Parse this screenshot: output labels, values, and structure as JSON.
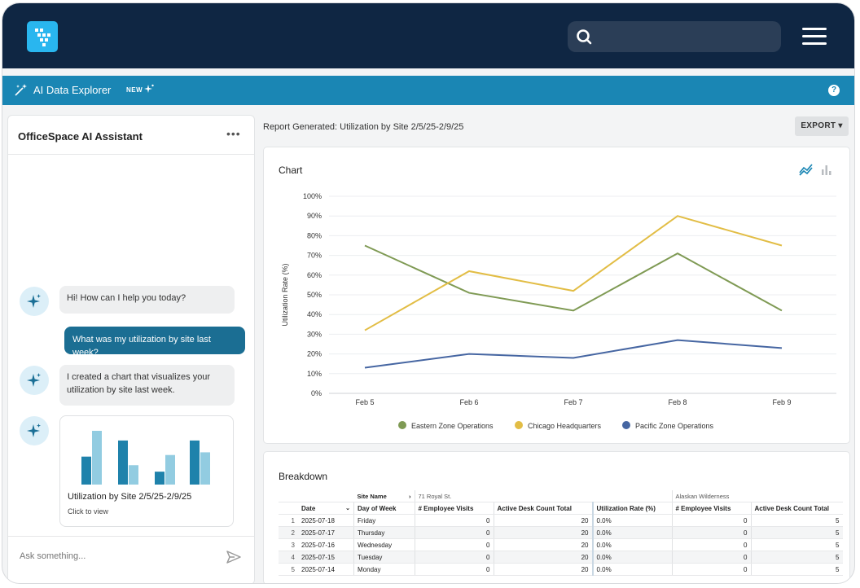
{
  "header": {
    "logo_icon": "brand-logo-icon",
    "search_icon": "search-icon",
    "menu_icon": "hamburger-menu-icon"
  },
  "subbar": {
    "title": "AI Data Explorer",
    "badge": "NEW",
    "help": "?"
  },
  "assistant": {
    "title": "OfficeSpace AI Assistant",
    "more": "•••",
    "messages": {
      "greeting": "Hi! How can I help you today?",
      "user_question": "What was my utilization by site last week?",
      "bot_reply": "I created a chart that visualizes your utilization by site last week."
    },
    "card": {
      "title": "Utilization by Site 2/5/25-2/9/25",
      "subtitle": "Click to view",
      "bars": [
        0.52,
        1.0,
        0.82,
        0.36,
        0.24,
        0.55,
        0.82,
        0.6
      ],
      "colors": [
        "#1f82ab",
        "#92cce1",
        "#1f82ab",
        "#92cce1",
        "#1f82ab",
        "#92cce1",
        "#1f82ab",
        "#92cce1"
      ]
    },
    "input_placeholder": "Ask something..."
  },
  "report": {
    "title": "Report Generated: Utilization by Site 2/5/25-2/9/25",
    "export_label": "EXPORT ▾"
  },
  "chart": {
    "title": "Chart"
  },
  "chart_data": {
    "type": "line",
    "x": [
      "Feb 5",
      "Feb 6",
      "Feb 7",
      "Feb 8",
      "Feb 9"
    ],
    "ylabel": "Utilization Rate (%)",
    "ylim": [
      0,
      100
    ],
    "yticks": [
      "0%",
      "10%",
      "20%",
      "30%",
      "40%",
      "50%",
      "60%",
      "70%",
      "80%",
      "90%",
      "100%"
    ],
    "grid": true,
    "legend": "bottom",
    "series": [
      {
        "name": "Eastern Zone Operations",
        "color": "#7f9a54",
        "values": [
          75,
          51,
          42,
          71,
          42
        ]
      },
      {
        "name": "Chicago Headquarters",
        "color": "#e2bd45",
        "values": [
          32,
          62,
          52,
          90,
          75
        ]
      },
      {
        "name": "Pacific Zone Operations",
        "color": "#4666a2",
        "values": [
          13,
          20,
          18,
          27,
          23
        ]
      }
    ]
  },
  "breakdown": {
    "title": "Breakdown",
    "group_label": "Site Name",
    "group_arrow": "›",
    "site1": "71 Royal St.",
    "site2": "Alaskan Wilderness",
    "columns": [
      "Date",
      "Day of Week",
      "# Employee Visits",
      "Active Desk Count Total",
      "Utilization Rate (%)",
      "# Employee Visits",
      "Active Desk Count Total"
    ],
    "rows": [
      [
        "1",
        "2025-07-18",
        "Friday",
        "0",
        "20",
        "0.0%",
        "0",
        "5"
      ],
      [
        "2",
        "2025-07-17",
        "Thursday",
        "0",
        "20",
        "0.0%",
        "0",
        "5"
      ],
      [
        "3",
        "2025-07-16",
        "Wednesday",
        "0",
        "20",
        "0.0%",
        "0",
        "5"
      ],
      [
        "4",
        "2025-07-15",
        "Tuesday",
        "0",
        "20",
        "0.0%",
        "0",
        "5"
      ],
      [
        "5",
        "2025-07-14",
        "Monday",
        "0",
        "20",
        "0.0%",
        "0",
        "5"
      ]
    ]
  }
}
